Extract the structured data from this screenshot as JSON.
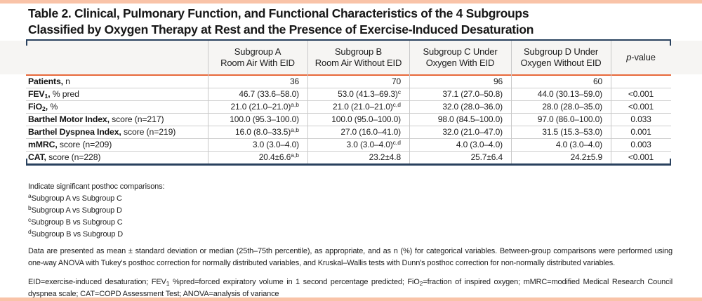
{
  "title": {
    "line1": "Table 2. Clinical, Pulmonary Function, and Functional Characteristics of the 4 Subgroups",
    "line2": "Classified by Oxygen Therapy at Rest and the Presence of Exercise-Induced Desaturation"
  },
  "table": {
    "columns": [
      {
        "id": "subgroup-a",
        "line1": "Subgroup A",
        "line2": "Room Air With EID"
      },
      {
        "id": "subgroup-b",
        "line1": "Subgroup B",
        "line2": "Room Air Without EID"
      },
      {
        "id": "subgroup-c",
        "line1": "Subgroup C Under",
        "line2": "Oxygen With EID"
      },
      {
        "id": "subgroup-d",
        "line1": "Subgroup D Under",
        "line2": "Oxygen Without EID"
      },
      {
        "id": "p-value",
        "line1": "*p*-value",
        "line2": ""
      }
    ],
    "rows": [
      {
        "label_bold": "Patients,",
        "label_rest": " n",
        "cells": [
          "36",
          "70",
          "96",
          "60"
        ],
        "p": ""
      },
      {
        "label_bold": "FEV~1~,",
        "label_rest": " % pred",
        "cells": [
          "46.7 (33.6–58.0)",
          "53.0 (41.3–69.3)^c^",
          "37.1 (27.0–50.8)",
          "44.0 (30.13–59.0)"
        ],
        "p": "<0.001"
      },
      {
        "label_bold": "FiO~2~,",
        "label_rest": " %",
        "cells": [
          "21.0 (21.0–21.0)^a,b^",
          "21.0 (21.0–21.0)^c,d^",
          "32.0 (28.0–36.0)",
          "28.0 (28.0–35.0)"
        ],
        "p": "<0.001"
      },
      {
        "label_bold": "Barthel Motor Index,",
        "label_rest": " score (n=217)",
        "cells": [
          "100.0 (95.3–100.0)",
          "100.0 (95.0–100.0)",
          "98.0 (84.5–100.0)",
          "97.0 (86.0–100.0)"
        ],
        "p": "0.033"
      },
      {
        "label_bold": "Barthel Dyspnea Index,",
        "label_rest": " score (n=219)",
        "cells": [
          "16.0 (8.0–33.5)^a,b^",
          "27.0 (16.0–41.0)",
          "32.0 (21.0–47.0)",
          "31.5 (15.3–53.0)"
        ],
        "p": "0.001"
      },
      {
        "label_bold": "mMRC,",
        "label_rest": " score (n=209)",
        "cells": [
          "3.0 (3.0–4.0)",
          "3.0 (3.0–4.0)^c,d^",
          "4.0 (3.0–4.0)",
          "4.0 (3.0–4.0)"
        ],
        "p": "0.003"
      },
      {
        "label_bold": "CAT,",
        "label_rest": " score (n=228)",
        "cells": [
          "20.4±6.6^a,b^",
          "23.2±4.8",
          "25.7±6.4",
          "24.2±5.9"
        ],
        "p": "<0.001"
      }
    ]
  },
  "footnotes": {
    "intro": "Indicate significant posthoc comparisons:",
    "items": [
      "^a^Subgroup A vs Subgroup C",
      "^b^Subgroup A vs Subgroup D",
      "^c^Subgroup B vs Subgroup C",
      "^d^Subgroup B vs Subgroup D"
    ],
    "data_note": "Data are presented as mean ± standard deviation or median (25th–75th percentile), as appropriate, and as n (%) for categorical variables. Between-group comparisons were performed using one-way ANOVA with Tukey's posthoc correction for normally distributed variables, and Kruskal–Wallis tests with Dunn's posthoc correction for non-normally distributed variables.",
    "abbreviations": "EID=exercise-induced desaturation; FEV~1~ %pred=forced expiratory volume in 1 second percentage predicted; FiO~2~=fraction of inspired oxygen; mMRC=modified Medical Research Council dyspnea scale; CAT=COPD Assessment Test; ANOVA=analysis of variance"
  },
  "colors": {
    "accent_salmon": "#f9c3a8",
    "accent_orange": "#e8683a",
    "rule_navy": "#29415e",
    "separator_gray": "#c9c9c9",
    "header_band": "#f6f5f3"
  }
}
